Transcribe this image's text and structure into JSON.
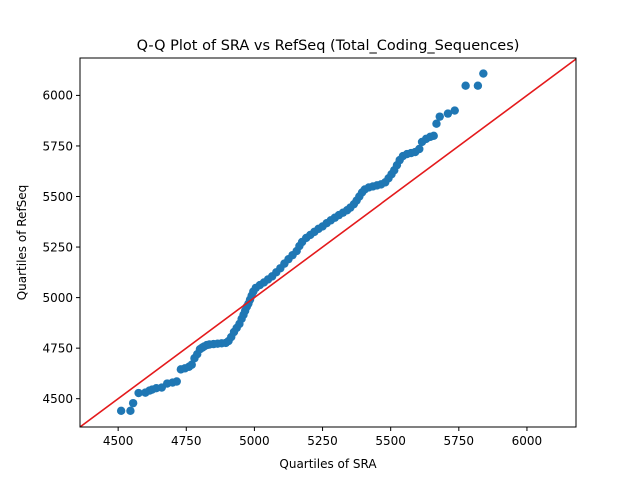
{
  "chart_data": {
    "type": "scatter",
    "title": "Q-Q Plot of SRA vs RefSeq (Total_Coding_Sequences)",
    "xlabel": "Quartiles of SRA",
    "ylabel": "Quartiles of RefSeq",
    "xlim": [
      4360,
      6180
    ],
    "ylim": [
      4360,
      6185
    ],
    "xticks": [
      4500,
      4750,
      5000,
      5250,
      5500,
      5750,
      6000
    ],
    "yticks": [
      4500,
      4750,
      5000,
      5250,
      5500,
      5750,
      6000
    ],
    "grid": false,
    "legend": "none",
    "colors": {
      "points": "#1f77b4",
      "reference_line": "#e41a1c"
    },
    "reference_line": {
      "type": "y=x",
      "points": [
        [
          4360,
          4360
        ],
        [
          6180,
          6180
        ]
      ]
    },
    "points": [
      [
        4511,
        4440
      ],
      [
        4545,
        4440
      ],
      [
        4555,
        4478
      ],
      [
        4575,
        4528
      ],
      [
        4600,
        4530
      ],
      [
        4615,
        4540
      ],
      [
        4625,
        4545
      ],
      [
        4640,
        4552
      ],
      [
        4660,
        4555
      ],
      [
        4680,
        4575
      ],
      [
        4700,
        4580
      ],
      [
        4715,
        4585
      ],
      [
        4730,
        4645
      ],
      [
        4745,
        4650
      ],
      [
        4760,
        4658
      ],
      [
        4770,
        4668
      ],
      [
        4780,
        4700
      ],
      [
        4790,
        4720
      ],
      [
        4800,
        4745
      ],
      [
        4808,
        4752
      ],
      [
        4815,
        4758
      ],
      [
        4825,
        4765
      ],
      [
        4835,
        4768
      ],
      [
        4850,
        4770
      ],
      [
        4865,
        4772
      ],
      [
        4880,
        4774
      ],
      [
        4895,
        4776
      ],
      [
        4905,
        4785
      ],
      [
        4915,
        4805
      ],
      [
        4925,
        4830
      ],
      [
        4935,
        4850
      ],
      [
        4945,
        4870
      ],
      [
        4953,
        4895
      ],
      [
        4960,
        4915
      ],
      [
        4966,
        4935
      ],
      [
        4972,
        4955
      ],
      [
        4978,
        4970
      ],
      [
        4984,
        4990
      ],
      [
        4990,
        5010
      ],
      [
        4996,
        5030
      ],
      [
        5005,
        5048
      ],
      [
        5020,
        5062
      ],
      [
        5035,
        5075
      ],
      [
        5050,
        5090
      ],
      [
        5065,
        5105
      ],
      [
        5080,
        5125
      ],
      [
        5095,
        5145
      ],
      [
        5110,
        5168
      ],
      [
        5125,
        5190
      ],
      [
        5140,
        5210
      ],
      [
        5155,
        5230
      ],
      [
        5165,
        5255
      ],
      [
        5175,
        5275
      ],
      [
        5190,
        5295
      ],
      [
        5205,
        5310
      ],
      [
        5220,
        5325
      ],
      [
        5235,
        5340
      ],
      [
        5250,
        5352
      ],
      [
        5265,
        5368
      ],
      [
        5280,
        5382
      ],
      [
        5295,
        5395
      ],
      [
        5310,
        5408
      ],
      [
        5325,
        5420
      ],
      [
        5340,
        5432
      ],
      [
        5352,
        5445
      ],
      [
        5365,
        5462
      ],
      [
        5375,
        5480
      ],
      [
        5385,
        5500
      ],
      [
        5395,
        5520
      ],
      [
        5405,
        5535
      ],
      [
        5420,
        5545
      ],
      [
        5435,
        5550
      ],
      [
        5450,
        5555
      ],
      [
        5465,
        5560
      ],
      [
        5480,
        5570
      ],
      [
        5492,
        5590
      ],
      [
        5503,
        5610
      ],
      [
        5513,
        5630
      ],
      [
        5523,
        5655
      ],
      [
        5533,
        5680
      ],
      [
        5545,
        5700
      ],
      [
        5560,
        5710
      ],
      [
        5575,
        5715
      ],
      [
        5590,
        5720
      ],
      [
        5605,
        5735
      ],
      [
        5615,
        5770
      ],
      [
        5630,
        5785
      ],
      [
        5645,
        5795
      ],
      [
        5658,
        5800
      ],
      [
        5668,
        5860
      ],
      [
        5680,
        5895
      ],
      [
        5710,
        5910
      ],
      [
        5735,
        5925
      ],
      [
        5775,
        6048
      ],
      [
        5820,
        6048
      ],
      [
        5840,
        6108
      ]
    ]
  }
}
